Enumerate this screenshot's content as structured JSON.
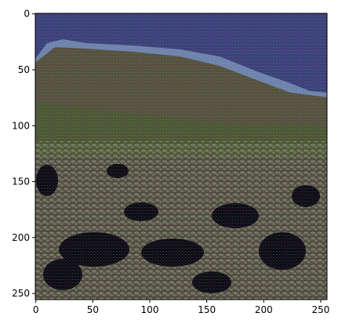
{
  "figure": {
    "type": "image",
    "description_free": true,
    "x_axis": {
      "ticks": [
        0,
        50,
        100,
        150,
        200,
        250
      ],
      "range": [
        0,
        256
      ]
    },
    "y_axis": {
      "ticks": [
        0,
        50,
        100,
        150,
        200,
        250
      ],
      "range": [
        0,
        256
      ],
      "inverted": true
    },
    "x_tick_labels": [
      "0",
      "50",
      "100",
      "150",
      "200",
      "250"
    ],
    "y_tick_labels": [
      "0",
      "50",
      "100",
      "150",
      "200",
      "250"
    ]
  },
  "colors": {
    "sky": "#3a3f77",
    "ridge": "#6f82b0",
    "hillside": "#5a5440",
    "grass": "#4b5a32",
    "rock": "#7a7468",
    "shadow": "#0e0b14"
  }
}
